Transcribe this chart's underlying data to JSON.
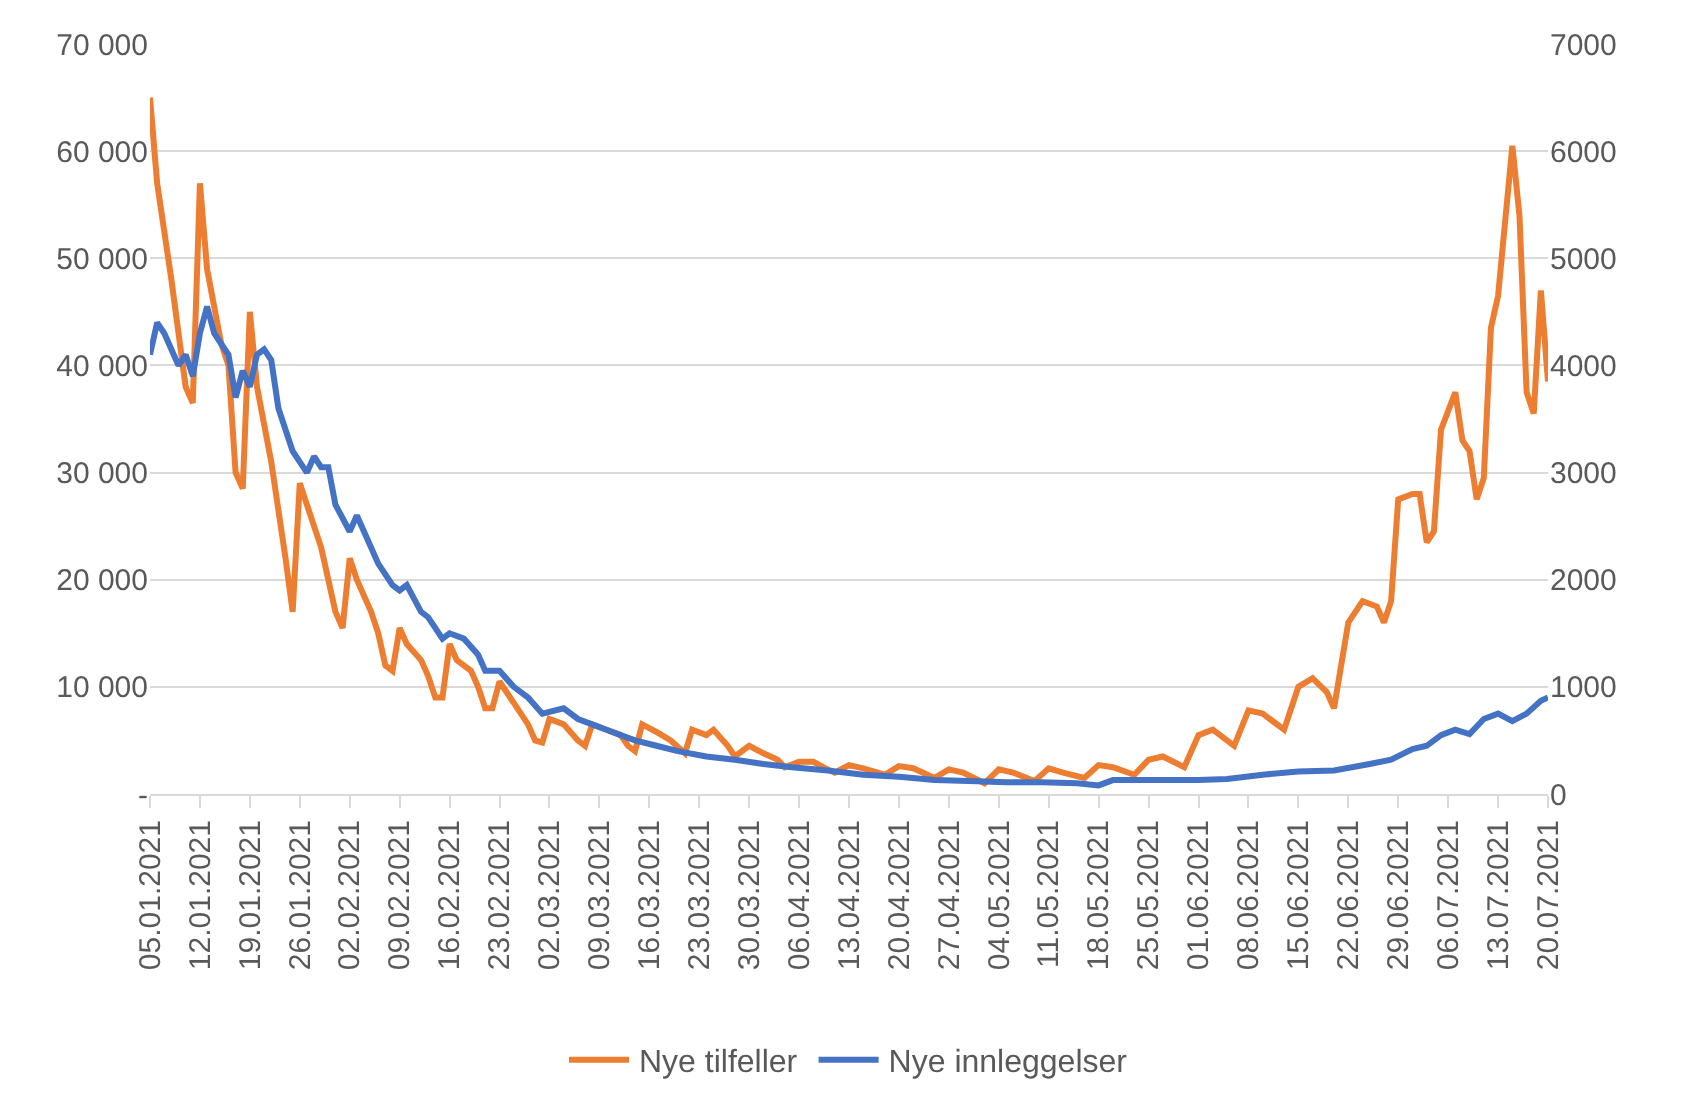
{
  "chart_data": {
    "type": "line",
    "legend": "bottom",
    "grid": "y",
    "marker": "none",
    "line_style": "solid",
    "xlim": [
      "2021-01-05",
      "2021-07-20"
    ],
    "xticks": [
      {
        "value": "2021-01-05",
        "label": "05.01.2021"
      },
      {
        "value": "2021-01-12",
        "label": "12.01.2021"
      },
      {
        "value": "2021-01-19",
        "label": "19.01.2021"
      },
      {
        "value": "2021-01-26",
        "label": "26.01.2021"
      },
      {
        "value": "2021-02-02",
        "label": "02.02.2021"
      },
      {
        "value": "2021-02-09",
        "label": "09.02.2021"
      },
      {
        "value": "2021-02-16",
        "label": "16.02.2021"
      },
      {
        "value": "2021-02-23",
        "label": "23.02.2021"
      },
      {
        "value": "2021-03-02",
        "label": "02.03.2021"
      },
      {
        "value": "2021-03-09",
        "label": "09.03.2021"
      },
      {
        "value": "2021-03-16",
        "label": "16.03.2021"
      },
      {
        "value": "2021-03-23",
        "label": "23.03.2021"
      },
      {
        "value": "2021-03-30",
        "label": "30.03.2021"
      },
      {
        "value": "2021-04-06",
        "label": "06.04.2021"
      },
      {
        "value": "2021-04-13",
        "label": "13.04.2021"
      },
      {
        "value": "2021-04-20",
        "label": "20.04.2021"
      },
      {
        "value": "2021-04-27",
        "label": "27.04.2021"
      },
      {
        "value": "2021-05-04",
        "label": "04.05.2021"
      },
      {
        "value": "2021-05-11",
        "label": "11.05.2021"
      },
      {
        "value": "2021-05-18",
        "label": "18.05.2021"
      },
      {
        "value": "2021-05-25",
        "label": "25.05.2021"
      },
      {
        "value": "2021-06-01",
        "label": "01.06.2021"
      },
      {
        "value": "2021-06-08",
        "label": "08.06.2021"
      },
      {
        "value": "2021-06-15",
        "label": "15.06.2021"
      },
      {
        "value": "2021-06-22",
        "label": "22.06.2021"
      },
      {
        "value": "2021-06-29",
        "label": "29.06.2021"
      },
      {
        "value": "2021-07-06",
        "label": "06.07.2021"
      },
      {
        "value": "2021-07-13",
        "label": "13.07.2021"
      },
      {
        "value": "2021-07-20",
        "label": "20.07.2021"
      }
    ],
    "ylim": [
      0,
      70000
    ],
    "yticks": [
      {
        "value": 0,
        "label": "-"
      },
      {
        "value": 10000,
        "label": "10 000"
      },
      {
        "value": 20000,
        "label": "20 000"
      },
      {
        "value": 30000,
        "label": "30 000"
      },
      {
        "value": 40000,
        "label": "40 000"
      },
      {
        "value": 50000,
        "label": "50 000"
      },
      {
        "value": 60000,
        "label": "60 000"
      },
      {
        "value": 70000,
        "label": "70 000"
      }
    ],
    "y2lim": [
      0,
      7000
    ],
    "y2ticks": [
      0,
      1000,
      2000,
      3000,
      4000,
      5000,
      6000,
      7000
    ],
    "series": [
      {
        "name": "Nye tilfeller",
        "color": "#ed7d31",
        "x": [
          "2021-01-05",
          "2021-01-06",
          "2021-01-08",
          "2021-01-10",
          "2021-01-11",
          "2021-01-12",
          "2021-01-13",
          "2021-01-15",
          "2021-01-16",
          "2021-01-17",
          "2021-01-18",
          "2021-01-19",
          "2021-01-20",
          "2021-01-22",
          "2021-01-24",
          "2021-01-25",
          "2021-01-26",
          "2021-01-28",
          "2021-01-29",
          "2021-01-31",
          "2021-02-01",
          "2021-02-02",
          "2021-02-03",
          "2021-02-05",
          "2021-02-06",
          "2021-02-07",
          "2021-02-08",
          "2021-02-09",
          "2021-02-10",
          "2021-02-12",
          "2021-02-13",
          "2021-02-14",
          "2021-02-15",
          "2021-02-16",
          "2021-02-17",
          "2021-02-19",
          "2021-02-20",
          "2021-02-21",
          "2021-02-22",
          "2021-02-23",
          "2021-02-25",
          "2021-02-27",
          "2021-02-28",
          "2021-03-01",
          "2021-03-02",
          "2021-03-04",
          "2021-03-06",
          "2021-03-07",
          "2021-03-08",
          "2021-03-10",
          "2021-03-12",
          "2021-03-13",
          "2021-03-14",
          "2021-03-15",
          "2021-03-17",
          "2021-03-19",
          "2021-03-21",
          "2021-03-22",
          "2021-03-24",
          "2021-03-25",
          "2021-03-27",
          "2021-03-28",
          "2021-03-30",
          "2021-04-01",
          "2021-04-03",
          "2021-04-04",
          "2021-04-06",
          "2021-04-08",
          "2021-04-10",
          "2021-04-11",
          "2021-04-13",
          "2021-04-15",
          "2021-04-18",
          "2021-04-20",
          "2021-04-22",
          "2021-04-25",
          "2021-04-27",
          "2021-04-29",
          "2021-05-02",
          "2021-05-04",
          "2021-05-06",
          "2021-05-09",
          "2021-05-11",
          "2021-05-13",
          "2021-05-16",
          "2021-05-18",
          "2021-05-20",
          "2021-05-23",
          "2021-05-25",
          "2021-05-27",
          "2021-05-30",
          "2021-06-01",
          "2021-06-03",
          "2021-06-06",
          "2021-06-08",
          "2021-06-10",
          "2021-06-13",
          "2021-06-15",
          "2021-06-17",
          "2021-06-19",
          "2021-06-20",
          "2021-06-22",
          "2021-06-24",
          "2021-06-26",
          "2021-06-27",
          "2021-06-28",
          "2021-06-29",
          "2021-07-01",
          "2021-07-02",
          "2021-07-03",
          "2021-07-04",
          "2021-07-05",
          "2021-07-07",
          "2021-07-08",
          "2021-07-09",
          "2021-07-10",
          "2021-07-11",
          "2021-07-12",
          "2021-07-13",
          "2021-07-15",
          "2021-07-16",
          "2021-07-17",
          "2021-07-18",
          "2021-07-19",
          "2021-07-20"
        ],
        "values": [
          65000,
          57000,
          48000,
          38000,
          36500,
          57000,
          49000,
          42000,
          40000,
          30000,
          28500,
          45000,
          38000,
          31000,
          22000,
          17000,
          29000,
          25000,
          23000,
          17000,
          15500,
          22000,
          20000,
          17000,
          15000,
          12000,
          11500,
          15500,
          14000,
          12500,
          11000,
          9000,
          9000,
          14000,
          12500,
          11500,
          10000,
          8000,
          8000,
          10500,
          8500,
          6500,
          5000,
          4800,
          7000,
          6500,
          5000,
          4500,
          6500,
          6000,
          5500,
          4500,
          4000,
          6500,
          5800,
          5000,
          3800,
          6000,
          5500,
          6000,
          4500,
          3500,
          4500,
          3800,
          3200,
          2500,
          3000,
          3000,
          2300,
          2000,
          2700,
          2400,
          1800,
          2600,
          2400,
          1500,
          2300,
          2000,
          1000,
          2300,
          2000,
          1200,
          2400,
          2000,
          1500,
          2700,
          2500,
          1800,
          3200,
          3500,
          2500,
          5500,
          6000,
          4500,
          7800,
          7500,
          6000,
          10000,
          10800,
          9500,
          8000,
          16000,
          18000,
          17500,
          16000,
          18000,
          27500,
          28000,
          28000,
          23500,
          24500,
          34000,
          37500,
          33000,
          32000,
          27500,
          29500,
          43500,
          46500,
          60500,
          54000,
          37500,
          35500,
          47000,
          38500
        ]
      },
      {
        "name": "Nye innleggelser",
        "color": "#4472c4",
        "axis": "y2",
        "x": [
          "2021-01-05",
          "2021-01-06",
          "2021-01-07",
          "2021-01-09",
          "2021-01-10",
          "2021-01-11",
          "2021-01-12",
          "2021-01-13",
          "2021-01-14",
          "2021-01-15",
          "2021-01-16",
          "2021-01-17",
          "2021-01-18",
          "2021-01-19",
          "2021-01-20",
          "2021-01-21",
          "2021-01-22",
          "2021-01-23",
          "2021-01-25",
          "2021-01-26",
          "2021-01-27",
          "2021-01-28",
          "2021-01-29",
          "2021-01-30",
          "2021-01-31",
          "2021-02-02",
          "2021-02-03",
          "2021-02-04",
          "2021-02-06",
          "2021-02-08",
          "2021-02-09",
          "2021-02-10",
          "2021-02-12",
          "2021-02-13",
          "2021-02-15",
          "2021-02-16",
          "2021-02-18",
          "2021-02-20",
          "2021-02-21",
          "2021-02-23",
          "2021-02-25",
          "2021-02-27",
          "2021-03-01",
          "2021-03-04",
          "2021-03-06",
          "2021-03-08",
          "2021-03-10",
          "2021-03-12",
          "2021-03-14",
          "2021-03-17",
          "2021-03-20",
          "2021-03-24",
          "2021-03-28",
          "2021-04-01",
          "2021-04-05",
          "2021-04-10",
          "2021-04-15",
          "2021-04-20",
          "2021-04-25",
          "2021-05-01",
          "2021-05-05",
          "2021-05-10",
          "2021-05-15",
          "2021-05-18",
          "2021-05-20",
          "2021-05-25",
          "2021-06-01",
          "2021-06-05",
          "2021-06-10",
          "2021-06-15",
          "2021-06-20",
          "2021-06-25",
          "2021-06-28",
          "2021-07-01",
          "2021-07-03",
          "2021-07-05",
          "2021-07-07",
          "2021-07-09",
          "2021-07-11",
          "2021-07-13",
          "2021-07-15",
          "2021-07-17",
          "2021-07-19",
          "2021-07-20"
        ],
        "values": [
          4100,
          4400,
          4300,
          4000,
          4100,
          3900,
          4300,
          4550,
          4300,
          4200,
          4100,
          3700,
          3950,
          3800,
          4100,
          4150,
          4050,
          3600,
          3200,
          3100,
          3000,
          3150,
          3050,
          3050,
          2700,
          2450,
          2600,
          2450,
          2150,
          1950,
          1900,
          1950,
          1700,
          1650,
          1450,
          1500,
          1450,
          1300,
          1150,
          1150,
          1000,
          900,
          750,
          800,
          700,
          650,
          600,
          550,
          500,
          450,
          400,
          350,
          320,
          280,
          250,
          220,
          180,
          160,
          130,
          120,
          110,
          110,
          100,
          80,
          130,
          130,
          130,
          140,
          180,
          210,
          220,
          280,
          320,
          420,
          450,
          550,
          600,
          560,
          700,
          750,
          680,
          750,
          870,
          900
        ]
      }
    ]
  }
}
